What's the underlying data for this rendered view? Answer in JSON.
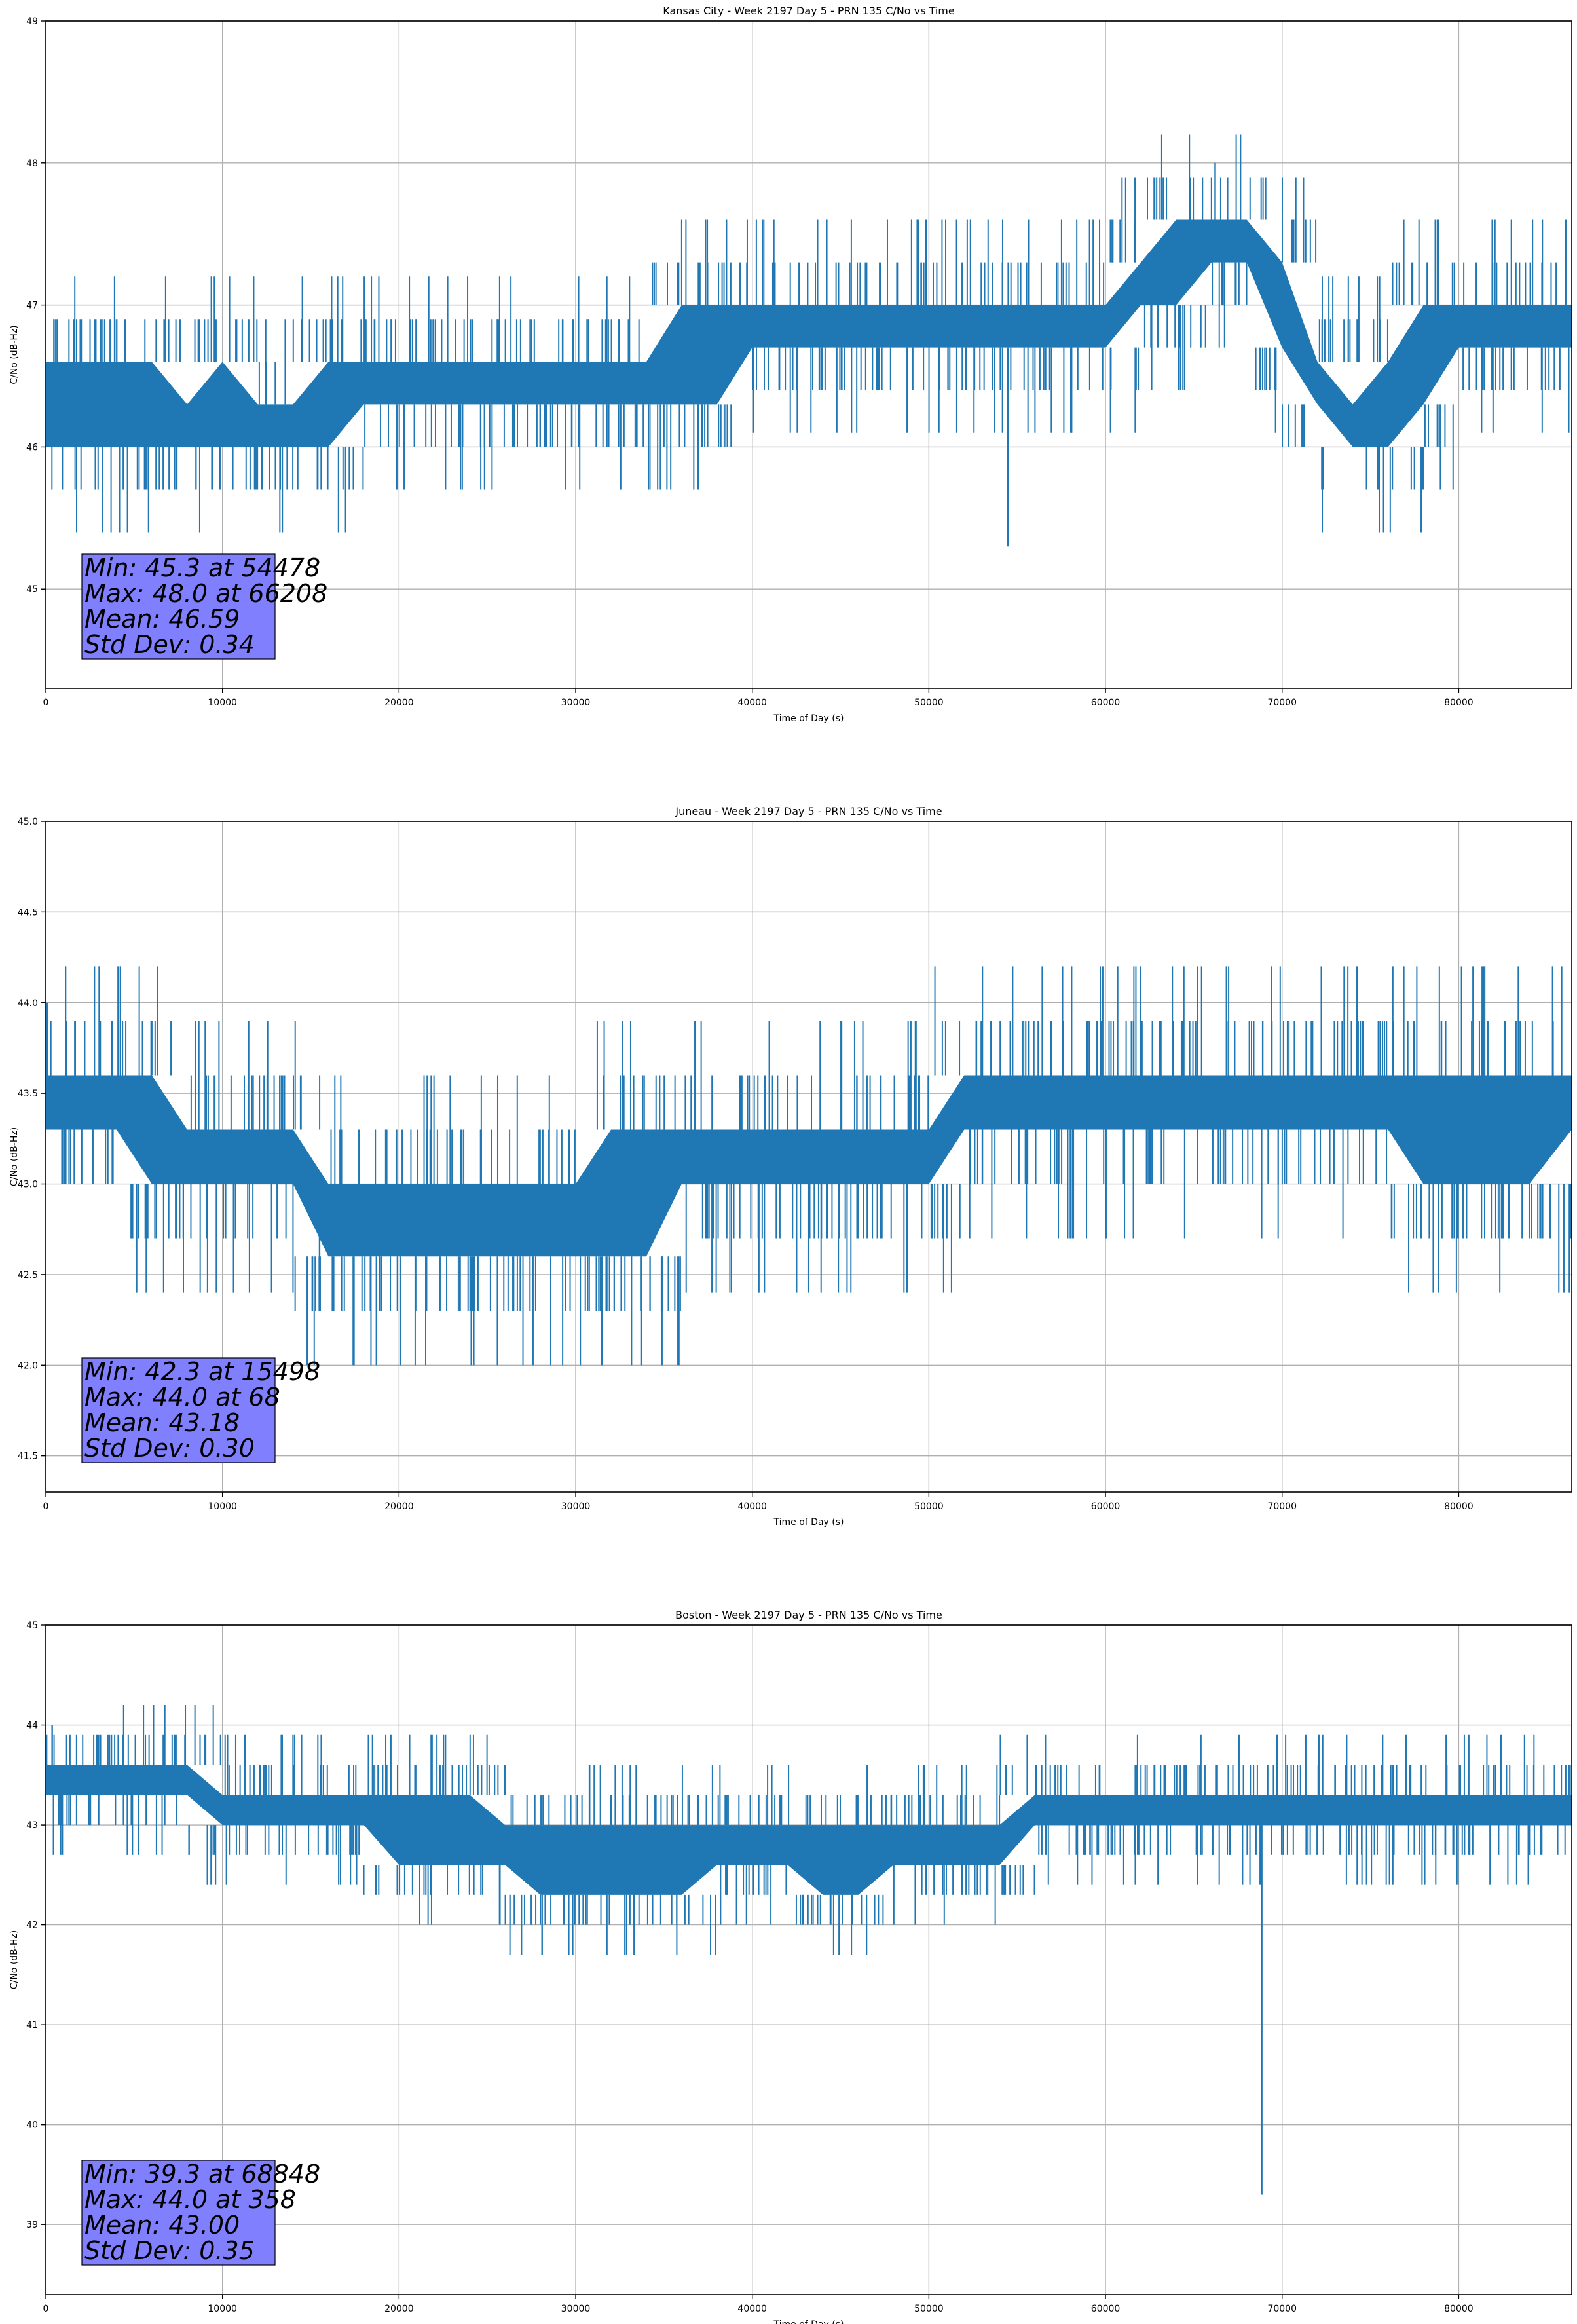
{
  "figure": {
    "background": "#ffffff",
    "grid": true
  },
  "chart_data": [
    {
      "type": "line",
      "title": "Kansas City - Week 2197 Day 5 - PRN 135 C/No vs Time",
      "xlabel": "Time of Day (s)",
      "ylabel": "C/No (dB-Hz)",
      "xlim": [
        0,
        86400
      ],
      "ylim": [
        44.3,
        49.0
      ],
      "xticks": [
        0,
        10000,
        20000,
        30000,
        40000,
        50000,
        60000,
        70000,
        80000
      ],
      "yticks": [
        45,
        46,
        47,
        48,
        49
      ],
      "ytick_labels": [
        "45",
        "46",
        "47",
        "48",
        "49"
      ],
      "grid": true,
      "line_color": "#1f77b4",
      "stats_box_color": "#8080ff",
      "stats": [
        "Min: 45.3 at 54478",
        "Max: 48.0 at 66208",
        "Mean: 46.59",
        "Std Dev: 0.34"
      ],
      "series": [
        {
          "x": [
            0,
            2000,
            4000,
            6000,
            8000,
            10000,
            12000,
            14000,
            16000,
            18000,
            20000,
            22000,
            24000,
            26000,
            28000,
            30000,
            32000,
            34000,
            36000,
            38000,
            40000,
            42000,
            44000,
            46000,
            48000,
            50000,
            52000,
            54000,
            56000,
            58000,
            60000,
            62000,
            64000,
            66000,
            68000,
            70000,
            72000,
            74000,
            76000,
            78000,
            80000,
            82000,
            84000,
            86400
          ],
          "low": [
            46.0,
            46.0,
            46.0,
            46.0,
            46.0,
            46.0,
            46.0,
            46.0,
            46.0,
            46.3,
            46.3,
            46.3,
            46.3,
            46.3,
            46.3,
            46.3,
            46.3,
            46.3,
            46.3,
            46.3,
            46.7,
            46.7,
            46.7,
            46.7,
            46.7,
            46.7,
            46.7,
            46.7,
            46.7,
            46.7,
            46.7,
            47.0,
            47.0,
            47.3,
            47.3,
            46.7,
            46.3,
            46.0,
            46.0,
            46.3,
            46.7,
            46.7,
            46.7,
            46.7
          ],
          "high": [
            46.6,
            46.6,
            46.6,
            46.6,
            46.3,
            46.6,
            46.3,
            46.3,
            46.6,
            46.6,
            46.6,
            46.6,
            46.6,
            46.6,
            46.6,
            46.6,
            46.6,
            46.6,
            47.0,
            47.0,
            47.0,
            47.0,
            47.0,
            47.0,
            47.0,
            47.0,
            47.0,
            47.0,
            47.0,
            47.0,
            47.0,
            47.3,
            47.6,
            47.6,
            47.6,
            47.3,
            46.6,
            46.3,
            46.6,
            47.0,
            47.0,
            47.0,
            47.0,
            47.0
          ]
        }
      ],
      "annotations": [
        {
          "x": 54478,
          "y": 45.3,
          "note": "Min"
        },
        {
          "x": 66208,
          "y": 48.0,
          "note": "Max"
        }
      ]
    },
    {
      "type": "line",
      "title": "Juneau - Week 2197 Day 5 - PRN 135 C/No vs Time",
      "xlabel": "Time of Day (s)",
      "ylabel": "C/No (dB-Hz)",
      "xlim": [
        0,
        86400
      ],
      "ylim": [
        41.3,
        45.0
      ],
      "xticks": [
        0,
        10000,
        20000,
        30000,
        40000,
        50000,
        60000,
        70000,
        80000
      ],
      "yticks": [
        41.5,
        42.0,
        42.5,
        43.0,
        43.5,
        44.0,
        44.5,
        45.0
      ],
      "ytick_labels": [
        "41.5",
        "42.0",
        "42.5",
        "43.0",
        "43.5",
        "44.0",
        "44.5",
        "45.0"
      ],
      "grid": true,
      "line_color": "#1f77b4",
      "stats_box_color": "#8080ff",
      "stats": [
        "Min: 42.3 at 15498",
        "Max: 44.0 at 68",
        "Mean: 43.18",
        "Std Dev: 0.30"
      ],
      "series": [
        {
          "x": [
            0,
            2000,
            4000,
            6000,
            8000,
            10000,
            12000,
            14000,
            16000,
            18000,
            20000,
            22000,
            24000,
            26000,
            28000,
            30000,
            32000,
            34000,
            36000,
            38000,
            40000,
            42000,
            44000,
            46000,
            48000,
            50000,
            52000,
            54000,
            56000,
            58000,
            60000,
            62000,
            64000,
            66000,
            68000,
            70000,
            72000,
            74000,
            76000,
            78000,
            80000,
            82000,
            84000,
            86400
          ],
          "low": [
            43.3,
            43.3,
            43.3,
            43.0,
            43.0,
            43.0,
            43.0,
            43.0,
            42.6,
            42.6,
            42.6,
            42.6,
            42.6,
            42.6,
            42.6,
            42.6,
            42.6,
            42.6,
            43.0,
            43.0,
            43.0,
            43.0,
            43.0,
            43.0,
            43.0,
            43.0,
            43.3,
            43.3,
            43.3,
            43.3,
            43.3,
            43.3,
            43.3,
            43.3,
            43.3,
            43.3,
            43.3,
            43.3,
            43.3,
            43.0,
            43.0,
            43.0,
            43.0,
            43.3
          ],
          "high": [
            43.6,
            43.6,
            43.6,
            43.6,
            43.3,
            43.3,
            43.3,
            43.3,
            43.0,
            43.0,
            43.0,
            43.0,
            43.0,
            43.0,
            43.0,
            43.0,
            43.3,
            43.3,
            43.3,
            43.3,
            43.3,
            43.3,
            43.3,
            43.3,
            43.3,
            43.3,
            43.6,
            43.6,
            43.6,
            43.6,
            43.6,
            43.6,
            43.6,
            43.6,
            43.6,
            43.6,
            43.6,
            43.6,
            43.6,
            43.6,
            43.6,
            43.6,
            43.6,
            43.6
          ]
        }
      ],
      "annotations": [
        {
          "x": 15498,
          "y": 42.3,
          "note": "Min"
        },
        {
          "x": 68,
          "y": 44.0,
          "note": "Max"
        }
      ]
    },
    {
      "type": "line",
      "title": "Boston - Week 2197 Day 5 - PRN 135 C/No vs Time",
      "xlabel": "Time of Day (s)",
      "ylabel": "C/No (dB-Hz)",
      "xlim": [
        0,
        86400
      ],
      "ylim": [
        38.3,
        45.0
      ],
      "xticks": [
        0,
        10000,
        20000,
        30000,
        40000,
        50000,
        60000,
        70000,
        80000
      ],
      "yticks": [
        39,
        40,
        41,
        42,
        43,
        44,
        45
      ],
      "ytick_labels": [
        "39",
        "40",
        "41",
        "42",
        "43",
        "44",
        "45"
      ],
      "grid": true,
      "line_color": "#1f77b4",
      "stats_box_color": "#8080ff",
      "stats": [
        "Min: 39.3 at 68848",
        "Max: 44.0 at 358",
        "Mean: 43.00",
        "Std Dev: 0.35"
      ],
      "series": [
        {
          "x": [
            0,
            2000,
            4000,
            6000,
            8000,
            10000,
            12000,
            14000,
            16000,
            18000,
            20000,
            22000,
            24000,
            26000,
            28000,
            30000,
            32000,
            34000,
            36000,
            38000,
            40000,
            42000,
            44000,
            46000,
            48000,
            50000,
            52000,
            54000,
            56000,
            58000,
            60000,
            62000,
            64000,
            66000,
            68000,
            70000,
            72000,
            74000,
            76000,
            78000,
            80000,
            82000,
            84000,
            86400
          ],
          "low": [
            43.3,
            43.3,
            43.3,
            43.3,
            43.3,
            43.0,
            43.0,
            43.0,
            43.0,
            43.0,
            42.6,
            42.6,
            42.6,
            42.6,
            42.3,
            42.3,
            42.3,
            42.3,
            42.3,
            42.6,
            42.6,
            42.6,
            42.3,
            42.3,
            42.6,
            42.6,
            42.6,
            42.6,
            43.0,
            43.0,
            43.0,
            43.0,
            43.0,
            43.0,
            43.0,
            43.0,
            43.0,
            43.0,
            43.0,
            43.0,
            43.0,
            43.0,
            43.0,
            43.0
          ],
          "high": [
            43.6,
            43.6,
            43.6,
            43.6,
            43.6,
            43.3,
            43.3,
            43.3,
            43.3,
            43.3,
            43.3,
            43.3,
            43.3,
            43.0,
            43.0,
            43.0,
            43.0,
            43.0,
            43.0,
            43.0,
            43.0,
            43.0,
            43.0,
            43.0,
            43.0,
            43.0,
            43.0,
            43.0,
            43.3,
            43.3,
            43.3,
            43.3,
            43.3,
            43.3,
            43.3,
            43.3,
            43.3,
            43.3,
            43.3,
            43.3,
            43.3,
            43.3,
            43.3,
            43.3
          ]
        }
      ],
      "annotations": [
        {
          "x": 68848,
          "y": 39.3,
          "note": "Min"
        },
        {
          "x": 358,
          "y": 44.0,
          "note": "Max"
        }
      ]
    }
  ]
}
